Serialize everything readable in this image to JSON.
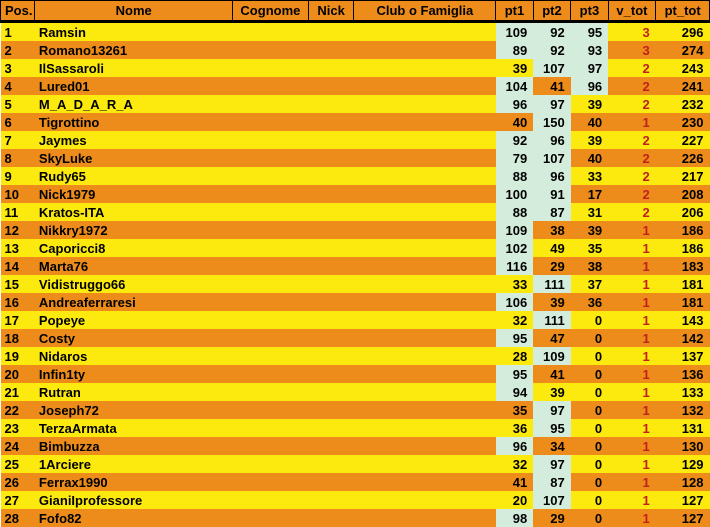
{
  "columns": {
    "widths": [
      34,
      195,
      75,
      45,
      140,
      37,
      37,
      37,
      47,
      53
    ],
    "pos": "Pos.",
    "nome": "Nome",
    "cognome": "Cognome",
    "nick": "Nick",
    "club": "Club o Famiglia",
    "pt1": "pt1",
    "pt2": "pt2",
    "pt3": "pt3",
    "vtot": "v_tot",
    "pttot": "pt_tot"
  },
  "colors": {
    "header_bg": "#ed8c1a",
    "row_yellow": "#fcea0f",
    "row_orange": "#ed8c1a",
    "cell_green": "#d4ecdc",
    "vtot_red": "#c21f1f"
  },
  "rows": [
    {
      "pos": "1",
      "nome": "Ramsin",
      "pt1": 109,
      "pt2": 92,
      "pt3": 95,
      "v": 3,
      "tot": 296,
      "g1": 1,
      "g2": 1,
      "g3": 1
    },
    {
      "pos": "2",
      "nome": "Romano13261",
      "pt1": 89,
      "pt2": 92,
      "pt3": 93,
      "v": 3,
      "tot": 274,
      "g1": 1,
      "g2": 1,
      "g3": 1
    },
    {
      "pos": "3",
      "nome": "IlSassaroli",
      "pt1": 39,
      "pt2": 107,
      "pt3": 97,
      "v": 2,
      "tot": 243,
      "g1": 0,
      "g2": 1,
      "g3": 1
    },
    {
      "pos": "4",
      "nome": "Lured01",
      "pt1": 104,
      "pt2": 41,
      "pt3": 96,
      "v": 2,
      "tot": 241,
      "g1": 1,
      "g2": 0,
      "g3": 1
    },
    {
      "pos": "5",
      "nome": "M_A_D_A_R_A",
      "pt1": 96,
      "pt2": 97,
      "pt3": 39,
      "v": 2,
      "tot": 232,
      "g1": 1,
      "g2": 1,
      "g3": 0
    },
    {
      "pos": "6",
      "nome": "Tigrottino",
      "pt1": 40,
      "pt2": 150,
      "pt3": 40,
      "v": 1,
      "tot": 230,
      "g1": 0,
      "g2": 1,
      "g3": 0
    },
    {
      "pos": "7",
      "nome": "Jaymes",
      "pt1": 92,
      "pt2": 96,
      "pt3": 39,
      "v": 2,
      "tot": 227,
      "g1": 1,
      "g2": 1,
      "g3": 0
    },
    {
      "pos": "8",
      "nome": "SkyLuke",
      "pt1": 79,
      "pt2": 107,
      "pt3": 40,
      "v": 2,
      "tot": 226,
      "g1": 1,
      "g2": 1,
      "g3": 0
    },
    {
      "pos": "9",
      "nome": "Rudy65",
      "pt1": 88,
      "pt2": 96,
      "pt3": 33,
      "v": 2,
      "tot": 217,
      "g1": 1,
      "g2": 1,
      "g3": 0
    },
    {
      "pos": "10",
      "nome": "Nick1979",
      "pt1": 100,
      "pt2": 91,
      "pt3": 17,
      "v": 2,
      "tot": 208,
      "g1": 1,
      "g2": 1,
      "g3": 0
    },
    {
      "pos": "11",
      "nome": "Kratos-ITA",
      "pt1": 88,
      "pt2": 87,
      "pt3": 31,
      "v": 2,
      "tot": 206,
      "g1": 1,
      "g2": 1,
      "g3": 0
    },
    {
      "pos": "12",
      "nome": "Nikkry1972",
      "pt1": 109,
      "pt2": 38,
      "pt3": 39,
      "v": 1,
      "tot": 186,
      "g1": 1,
      "g2": 0,
      "g3": 0
    },
    {
      "pos": "13",
      "nome": "Caporicci8",
      "pt1": 102,
      "pt2": 49,
      "pt3": 35,
      "v": 1,
      "tot": 186,
      "g1": 1,
      "g2": 0,
      "g3": 0
    },
    {
      "pos": "14",
      "nome": "Marta76",
      "pt1": 116,
      "pt2": 29,
      "pt3": 38,
      "v": 1,
      "tot": 183,
      "g1": 1,
      "g2": 0,
      "g3": 0
    },
    {
      "pos": "15",
      "nome": "Vidistruggo66",
      "pt1": 33,
      "pt2": 111,
      "pt3": 37,
      "v": 1,
      "tot": 181,
      "g1": 0,
      "g2": 1,
      "g3": 0
    },
    {
      "pos": "16",
      "nome": "Andreaferraresi",
      "pt1": 106,
      "pt2": 39,
      "pt3": 36,
      "v": 1,
      "tot": 181,
      "g1": 1,
      "g2": 0,
      "g3": 0
    },
    {
      "pos": "17",
      "nome": "Popeye",
      "pt1": 32,
      "pt2": 111,
      "pt3": 0,
      "v": 1,
      "tot": 143,
      "g1": 0,
      "g2": 1,
      "g3": 0
    },
    {
      "pos": "18",
      "nome": "Costy",
      "pt1": 95,
      "pt2": 47,
      "pt3": 0,
      "v": 1,
      "tot": 142,
      "g1": 1,
      "g2": 0,
      "g3": 0
    },
    {
      "pos": "19",
      "nome": "Nidaros",
      "pt1": 28,
      "pt2": 109,
      "pt3": 0,
      "v": 1,
      "tot": 137,
      "g1": 0,
      "g2": 1,
      "g3": 0
    },
    {
      "pos": "20",
      "nome": "Infin1ty",
      "pt1": 95,
      "pt2": 41,
      "pt3": 0,
      "v": 1,
      "tot": 136,
      "g1": 1,
      "g2": 0,
      "g3": 0
    },
    {
      "pos": "21",
      "nome": "Rutran",
      "pt1": 94,
      "pt2": 39,
      "pt3": 0,
      "v": 1,
      "tot": 133,
      "g1": 1,
      "g2": 0,
      "g3": 0
    },
    {
      "pos": "22",
      "nome": "Joseph72",
      "pt1": 35,
      "pt2": 97,
      "pt3": 0,
      "v": 1,
      "tot": 132,
      "g1": 0,
      "g2": 1,
      "g3": 0
    },
    {
      "pos": "23",
      "nome": "TerzaArmata",
      "pt1": 36,
      "pt2": 95,
      "pt3": 0,
      "v": 1,
      "tot": 131,
      "g1": 0,
      "g2": 1,
      "g3": 0
    },
    {
      "pos": "24",
      "nome": "Bimbuzza",
      "pt1": 96,
      "pt2": 34,
      "pt3": 0,
      "v": 1,
      "tot": 130,
      "g1": 1,
      "g2": 0,
      "g3": 0
    },
    {
      "pos": "25",
      "nome": "1Arciere",
      "pt1": 32,
      "pt2": 97,
      "pt3": 0,
      "v": 1,
      "tot": 129,
      "g1": 0,
      "g2": 1,
      "g3": 0
    },
    {
      "pos": "26",
      "nome": "Ferrax1990",
      "pt1": 41,
      "pt2": 87,
      "pt3": 0,
      "v": 1,
      "tot": 128,
      "g1": 0,
      "g2": 1,
      "g3": 0
    },
    {
      "pos": "27",
      "nome": "GianiIprofessore",
      "pt1": 20,
      "pt2": 107,
      "pt3": 0,
      "v": 1,
      "tot": 127,
      "g1": 0,
      "g2": 1,
      "g3": 0
    },
    {
      "pos": "28",
      "nome": "Fofo82",
      "pt1": 98,
      "pt2": 29,
      "pt3": 0,
      "v": 1,
      "tot": 127,
      "g1": 1,
      "g2": 0,
      "g3": 0
    }
  ]
}
